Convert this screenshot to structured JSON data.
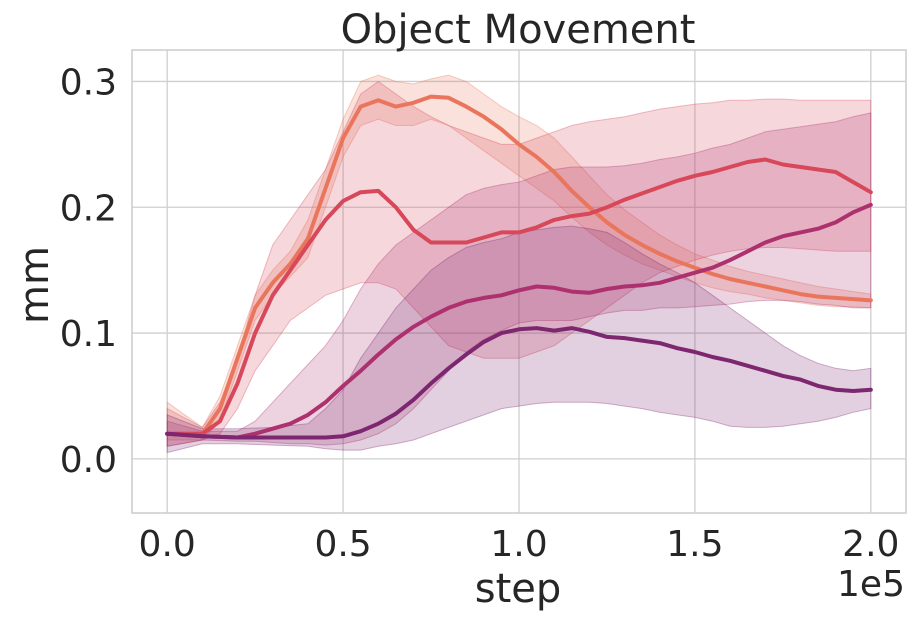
{
  "chart_data": {
    "type": "line",
    "title": "Object Movement",
    "xlabel": "step",
    "ylabel": "mm",
    "x_offset_label": "1e5",
    "xlim": [
      -10000,
      210000
    ],
    "ylim": [
      -0.043,
      0.325
    ],
    "xticks": [
      0,
      50000,
      100000,
      150000,
      200000
    ],
    "xtick_labels": [
      "0.0",
      "0.5",
      "1.0",
      "1.5",
      "2.0"
    ],
    "yticks": [
      0.0,
      0.1,
      0.2,
      0.3
    ],
    "ytick_labels": [
      "0.0",
      "0.1",
      "0.2",
      "0.3"
    ],
    "grid": true,
    "legend": "none",
    "series": [
      {
        "color": "#e9765c",
        "x": [
          0,
          10000,
          15000,
          20000,
          25000,
          30000,
          35000,
          40000,
          45000,
          50000,
          55000,
          60000,
          65000,
          70000,
          75000,
          80000,
          85000,
          90000,
          95000,
          100000,
          105000,
          110000,
          115000,
          120000,
          125000,
          130000,
          135000,
          140000,
          145000,
          150000,
          155000,
          160000,
          165000,
          170000,
          175000,
          180000,
          185000,
          190000,
          195000,
          200000
        ],
        "y": [
          0.02,
          0.02,
          0.04,
          0.08,
          0.12,
          0.14,
          0.155,
          0.175,
          0.215,
          0.255,
          0.28,
          0.285,
          0.28,
          0.283,
          0.288,
          0.287,
          0.28,
          0.272,
          0.262,
          0.25,
          0.24,
          0.228,
          0.213,
          0.2,
          0.188,
          0.178,
          0.17,
          0.163,
          0.157,
          0.152,
          0.147,
          0.143,
          0.14,
          0.137,
          0.134,
          0.131,
          0.129,
          0.128,
          0.127,
          0.126
        ],
        "lower": [
          0.015,
          0.015,
          0.03,
          0.07,
          0.11,
          0.13,
          0.145,
          0.16,
          0.2,
          0.24,
          0.265,
          0.27,
          0.265,
          0.265,
          0.27,
          0.265,
          0.255,
          0.245,
          0.235,
          0.225,
          0.215,
          0.205,
          0.192,
          0.18,
          0.17,
          0.162,
          0.155,
          0.15,
          0.145,
          0.14,
          0.136,
          0.133,
          0.131,
          0.128,
          0.126,
          0.124,
          0.122,
          0.121,
          0.121,
          0.12
        ],
        "upper": [
          0.045,
          0.025,
          0.05,
          0.09,
          0.13,
          0.15,
          0.165,
          0.19,
          0.23,
          0.27,
          0.3,
          0.305,
          0.3,
          0.298,
          0.302,
          0.305,
          0.3,
          0.29,
          0.28,
          0.272,
          0.265,
          0.255,
          0.24,
          0.225,
          0.21,
          0.198,
          0.188,
          0.178,
          0.17,
          0.163,
          0.158,
          0.153,
          0.149,
          0.146,
          0.143,
          0.14,
          0.137,
          0.135,
          0.133,
          0.131
        ]
      },
      {
        "color": "#d6485a",
        "x": [
          0,
          10000,
          15000,
          20000,
          25000,
          30000,
          35000,
          40000,
          45000,
          50000,
          55000,
          60000,
          65000,
          70000,
          75000,
          80000,
          85000,
          90000,
          95000,
          100000,
          105000,
          110000,
          115000,
          120000,
          125000,
          130000,
          135000,
          140000,
          145000,
          150000,
          155000,
          160000,
          165000,
          170000,
          175000,
          180000,
          185000,
          190000,
          195000,
          200000
        ],
        "y": [
          0.02,
          0.02,
          0.03,
          0.06,
          0.1,
          0.13,
          0.15,
          0.17,
          0.19,
          0.205,
          0.212,
          0.213,
          0.2,
          0.182,
          0.172,
          0.172,
          0.172,
          0.176,
          0.18,
          0.18,
          0.184,
          0.19,
          0.193,
          0.195,
          0.2,
          0.206,
          0.211,
          0.216,
          0.221,
          0.225,
          0.228,
          0.232,
          0.236,
          0.238,
          0.234,
          0.232,
          0.23,
          0.228,
          0.22,
          0.212
        ],
        "lower": [
          0.01,
          0.015,
          0.02,
          0.04,
          0.07,
          0.09,
          0.11,
          0.12,
          0.13,
          0.135,
          0.14,
          0.14,
          0.135,
          0.12,
          0.105,
          0.09,
          0.085,
          0.08,
          0.08,
          0.08,
          0.085,
          0.09,
          0.1,
          0.11,
          0.12,
          0.13,
          0.14,
          0.148,
          0.153,
          0.158,
          0.162,
          0.165,
          0.167,
          0.168,
          0.168,
          0.167,
          0.166,
          0.165,
          0.165,
          0.165
        ],
        "upper": [
          0.04,
          0.025,
          0.045,
          0.08,
          0.13,
          0.17,
          0.19,
          0.21,
          0.23,
          0.26,
          0.29,
          0.3,
          0.29,
          0.28,
          0.272,
          0.265,
          0.26,
          0.255,
          0.25,
          0.25,
          0.255,
          0.26,
          0.265,
          0.268,
          0.27,
          0.272,
          0.275,
          0.278,
          0.28,
          0.282,
          0.283,
          0.285,
          0.285,
          0.286,
          0.286,
          0.285,
          0.285,
          0.285,
          0.285,
          0.285
        ]
      },
      {
        "color": "#ad316f",
        "x": [
          0,
          10000,
          20000,
          25000,
          30000,
          35000,
          40000,
          45000,
          50000,
          55000,
          60000,
          65000,
          70000,
          75000,
          80000,
          85000,
          90000,
          95000,
          100000,
          105000,
          110000,
          115000,
          120000,
          125000,
          130000,
          135000,
          140000,
          145000,
          150000,
          155000,
          160000,
          165000,
          170000,
          175000,
          180000,
          185000,
          190000,
          195000,
          200000
        ],
        "y": [
          0.02,
          0.018,
          0.017,
          0.02,
          0.024,
          0.028,
          0.035,
          0.045,
          0.058,
          0.07,
          0.083,
          0.095,
          0.105,
          0.113,
          0.12,
          0.125,
          0.128,
          0.13,
          0.134,
          0.137,
          0.136,
          0.133,
          0.132,
          0.135,
          0.137,
          0.138,
          0.14,
          0.144,
          0.148,
          0.152,
          0.158,
          0.165,
          0.172,
          0.177,
          0.18,
          0.183,
          0.188,
          0.196,
          0.202
        ],
        "lower": [
          0.01,
          0.015,
          0.014,
          0.014,
          0.013,
          0.012,
          0.012,
          0.011,
          0.012,
          0.015,
          0.02,
          0.028,
          0.04,
          0.055,
          0.07,
          0.085,
          0.095,
          0.102,
          0.108,
          0.11,
          0.11,
          0.11,
          0.113,
          0.116,
          0.118,
          0.118,
          0.12,
          0.12,
          0.121,
          0.122,
          0.123,
          0.125,
          0.126,
          0.126,
          0.125,
          0.123,
          0.122,
          0.12,
          0.12
        ],
        "upper": [
          0.03,
          0.022,
          0.022,
          0.03,
          0.045,
          0.06,
          0.075,
          0.09,
          0.11,
          0.135,
          0.155,
          0.17,
          0.18,
          0.19,
          0.2,
          0.21,
          0.215,
          0.218,
          0.22,
          0.225,
          0.23,
          0.232,
          0.232,
          0.232,
          0.233,
          0.235,
          0.238,
          0.24,
          0.243,
          0.247,
          0.25,
          0.255,
          0.26,
          0.262,
          0.264,
          0.266,
          0.268,
          0.272,
          0.275
        ]
      },
      {
        "color": "#7d2770",
        "x": [
          0,
          10000,
          20000,
          30000,
          40000,
          45000,
          50000,
          55000,
          60000,
          65000,
          70000,
          75000,
          80000,
          85000,
          90000,
          95000,
          100000,
          105000,
          110000,
          115000,
          120000,
          125000,
          130000,
          135000,
          140000,
          145000,
          150000,
          155000,
          160000,
          165000,
          170000,
          175000,
          180000,
          185000,
          190000,
          195000,
          200000
        ],
        "y": [
          0.02,
          0.018,
          0.017,
          0.017,
          0.017,
          0.017,
          0.018,
          0.022,
          0.028,
          0.036,
          0.047,
          0.06,
          0.072,
          0.083,
          0.093,
          0.1,
          0.103,
          0.104,
          0.102,
          0.104,
          0.101,
          0.097,
          0.096,
          0.094,
          0.092,
          0.088,
          0.085,
          0.081,
          0.078,
          0.074,
          0.07,
          0.066,
          0.063,
          0.058,
          0.055,
          0.054,
          0.055
        ],
        "lower": [
          0.005,
          0.012,
          0.012,
          0.011,
          0.01,
          0.008,
          0.007,
          0.007,
          0.01,
          0.012,
          0.015,
          0.02,
          0.025,
          0.03,
          0.035,
          0.04,
          0.042,
          0.044,
          0.045,
          0.045,
          0.045,
          0.044,
          0.042,
          0.04,
          0.037,
          0.035,
          0.033,
          0.03,
          0.026,
          0.025,
          0.025,
          0.026,
          0.028,
          0.03,
          0.033,
          0.037,
          0.04
        ],
        "upper": [
          0.035,
          0.024,
          0.024,
          0.025,
          0.028,
          0.04,
          0.055,
          0.08,
          0.1,
          0.12,
          0.135,
          0.15,
          0.16,
          0.168,
          0.172,
          0.175,
          0.18,
          0.182,
          0.184,
          0.185,
          0.183,
          0.18,
          0.172,
          0.163,
          0.155,
          0.148,
          0.14,
          0.13,
          0.12,
          0.11,
          0.1,
          0.09,
          0.082,
          0.076,
          0.072,
          0.07,
          0.072
        ]
      }
    ]
  }
}
